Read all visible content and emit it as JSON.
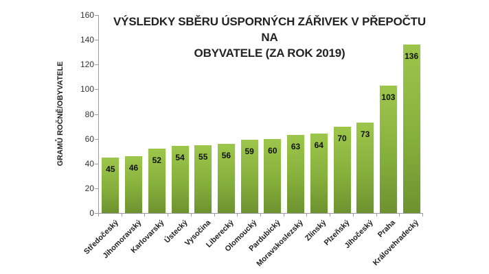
{
  "chart_data": {
    "type": "bar",
    "title": "VÝSLEDKY SBĚRU ÚSPORNÝCH ZÁŘIVEK V PŘEPOČTU NA OBYVATELE (ZA ROK 2019)",
    "title_lines": [
      "VÝSLEDKY SBĚRU ÚSPORNÝCH ZÁŘIVEK V PŘEPOČTU NA",
      "OBYVATELE (ZA ROK 2019)"
    ],
    "xlabel": "",
    "ylabel": "GRAMŮ ROČNĚ/OBYVATELE",
    "ylim": [
      0,
      160
    ],
    "yticks": [
      0,
      20,
      40,
      60,
      80,
      100,
      120,
      140,
      160
    ],
    "grid": false,
    "legend": null,
    "data_labels": true,
    "bar_color_top": "#9cc64b",
    "bar_color_bottom": "#6d9230",
    "categories": [
      "Středočeský",
      "Jihomoravský",
      "Karlovarský",
      "Ústecký",
      "Vysočina",
      "Liberecký",
      "Olomoucký",
      "Pardubický",
      "Moravskoslezský",
      "Zlínský",
      "Plzeňský",
      "Jihočeský",
      "Praha",
      "Královehradecký"
    ],
    "values": [
      45,
      46,
      52,
      54,
      55,
      56,
      59,
      60,
      63,
      64,
      70,
      73,
      103,
      136
    ]
  }
}
